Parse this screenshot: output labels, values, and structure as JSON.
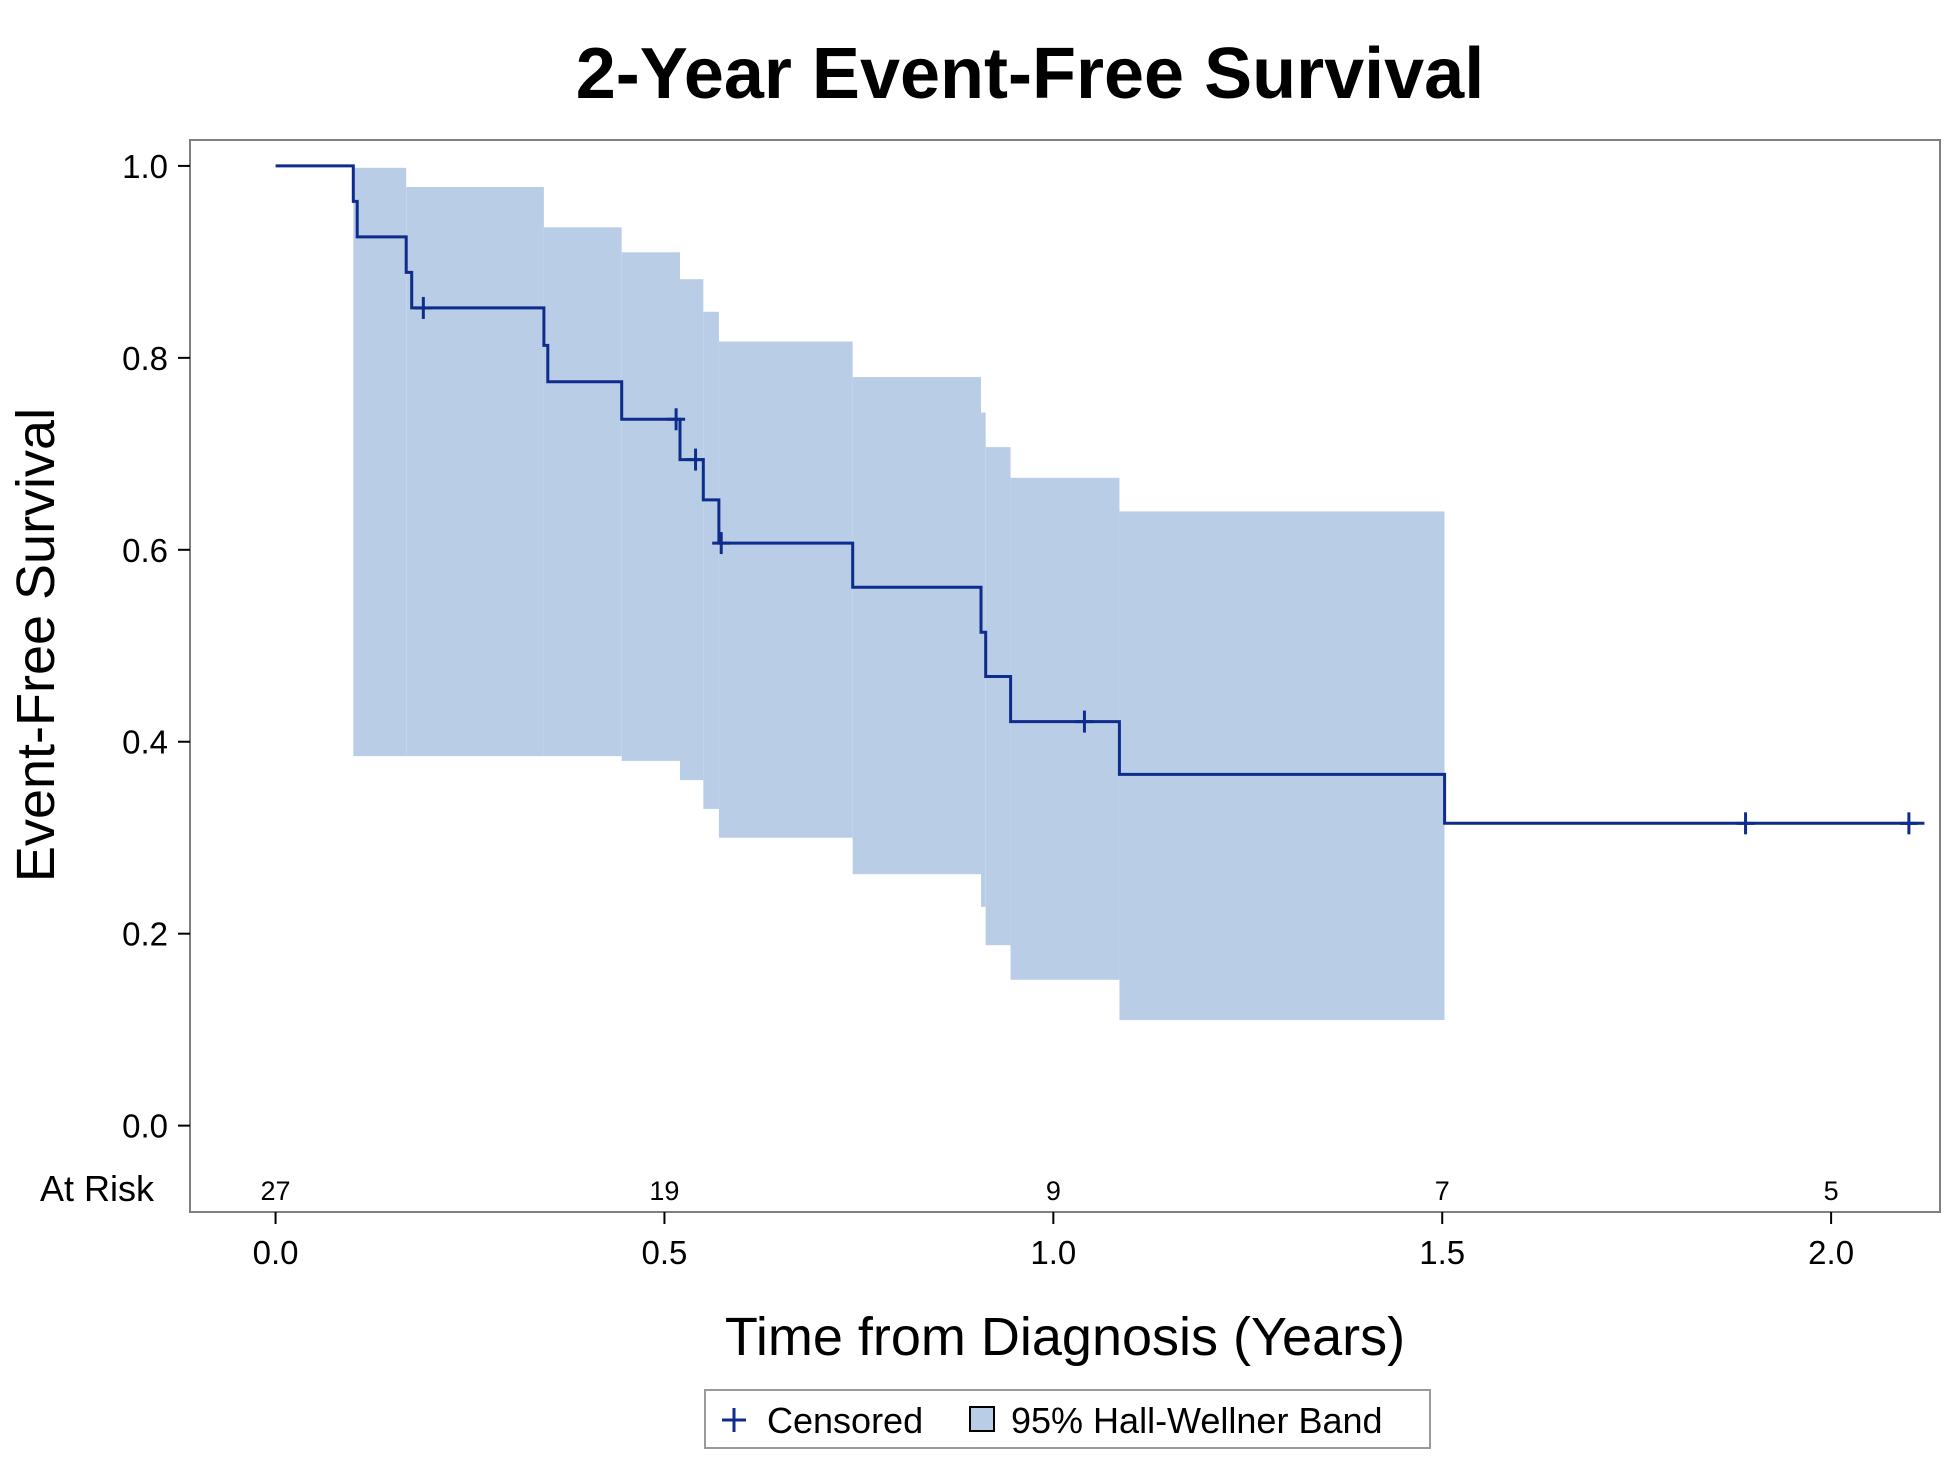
{
  "chart_data": {
    "type": "line",
    "title": "2-Year Event-Free Survival",
    "xlabel": "Time from Diagnosis (Years)",
    "ylabel": "Event-Free Survival",
    "xlim": [
      -0.11,
      2.14
    ],
    "ylim": [
      -0.09,
      1.027
    ],
    "xticks": [
      "0.0",
      "0.5",
      "1.0",
      "1.5",
      "2.0"
    ],
    "xtick_values": [
      0,
      0.5,
      1.0,
      1.5,
      2.0
    ],
    "yticks": [
      "0.0",
      "0.2",
      "0.4",
      "0.6",
      "0.8",
      "1.0"
    ],
    "ytick_values": [
      0,
      0.2,
      0.4,
      0.6,
      0.8,
      1.0
    ],
    "grid": false,
    "legend_position": "bottom-center",
    "colors": {
      "line": "#0d2c8c",
      "band": "#b9cee6",
      "frame": "#808080"
    },
    "series": [
      {
        "name": "",
        "step": [
          [
            0.0,
            1.0
          ],
          [
            0.1,
            1.0
          ],
          [
            0.1,
            0.963
          ],
          [
            0.105,
            0.963
          ],
          [
            0.105,
            0.926
          ],
          [
            0.168,
            0.926
          ],
          [
            0.168,
            0.889
          ],
          [
            0.175,
            0.889
          ],
          [
            0.175,
            0.852
          ],
          [
            0.345,
            0.852
          ],
          [
            0.345,
            0.813
          ],
          [
            0.35,
            0.813
          ],
          [
            0.35,
            0.775
          ],
          [
            0.445,
            0.775
          ],
          [
            0.445,
            0.736
          ],
          [
            0.52,
            0.736
          ],
          [
            0.52,
            0.694
          ],
          [
            0.55,
            0.694
          ],
          [
            0.55,
            0.652
          ],
          [
            0.57,
            0.652
          ],
          [
            0.57,
            0.607
          ],
          [
            0.742,
            0.607
          ],
          [
            0.742,
            0.561
          ],
          [
            0.907,
            0.561
          ],
          [
            0.907,
            0.514
          ],
          [
            0.913,
            0.514
          ],
          [
            0.913,
            0.468
          ],
          [
            0.945,
            0.468
          ],
          [
            0.945,
            0.421
          ],
          [
            1.085,
            0.421
          ],
          [
            1.085,
            0.366
          ],
          [
            1.503,
            0.366
          ],
          [
            1.503,
            0.315
          ],
          [
            2.12,
            0.315
          ]
        ]
      },
      {
        "name": "95% Hall-Wellner Band",
        "band": [
          {
            "x0": 0.1,
            "x1": 0.168,
            "lower": 0.385,
            "upper": 0.998
          },
          {
            "x0": 0.168,
            "x1": 0.345,
            "lower": 0.385,
            "upper": 0.978
          },
          {
            "x0": 0.345,
            "x1": 0.445,
            "lower": 0.385,
            "upper": 0.936
          },
          {
            "x0": 0.445,
            "x1": 0.52,
            "lower": 0.38,
            "upper": 0.91
          },
          {
            "x0": 0.52,
            "x1": 0.55,
            "lower": 0.36,
            "upper": 0.882
          },
          {
            "x0": 0.55,
            "x1": 0.57,
            "lower": 0.33,
            "upper": 0.848
          },
          {
            "x0": 0.57,
            "x1": 0.742,
            "lower": 0.3,
            "upper": 0.817
          },
          {
            "x0": 0.742,
            "x1": 0.907,
            "lower": 0.262,
            "upper": 0.78
          },
          {
            "x0": 0.907,
            "x1": 0.913,
            "lower": 0.228,
            "upper": 0.743
          },
          {
            "x0": 0.913,
            "x1": 0.945,
            "lower": 0.188,
            "upper": 0.707
          },
          {
            "x0": 0.945,
            "x1": 1.085,
            "lower": 0.152,
            "upper": 0.675
          },
          {
            "x0": 1.085,
            "x1": 1.503,
            "lower": 0.11,
            "upper": 0.64
          }
        ]
      },
      {
        "name": "Censored",
        "points": [
          [
            0.19,
            0.852
          ],
          [
            0.515,
            0.736
          ],
          [
            0.54,
            0.694
          ],
          [
            0.573,
            0.607
          ],
          [
            1.04,
            0.421
          ],
          [
            1.89,
            0.315
          ],
          [
            2.1,
            0.315
          ]
        ]
      }
    ],
    "at_risk": {
      "label": "At Risk",
      "times": [
        0,
        0.5,
        1.0,
        1.5,
        2.0
      ],
      "counts": [
        "27",
        "19",
        "9",
        "7",
        "5"
      ]
    },
    "legend": {
      "censored_label": "Censored",
      "band_label": "95% Hall-Wellner Band"
    }
  }
}
